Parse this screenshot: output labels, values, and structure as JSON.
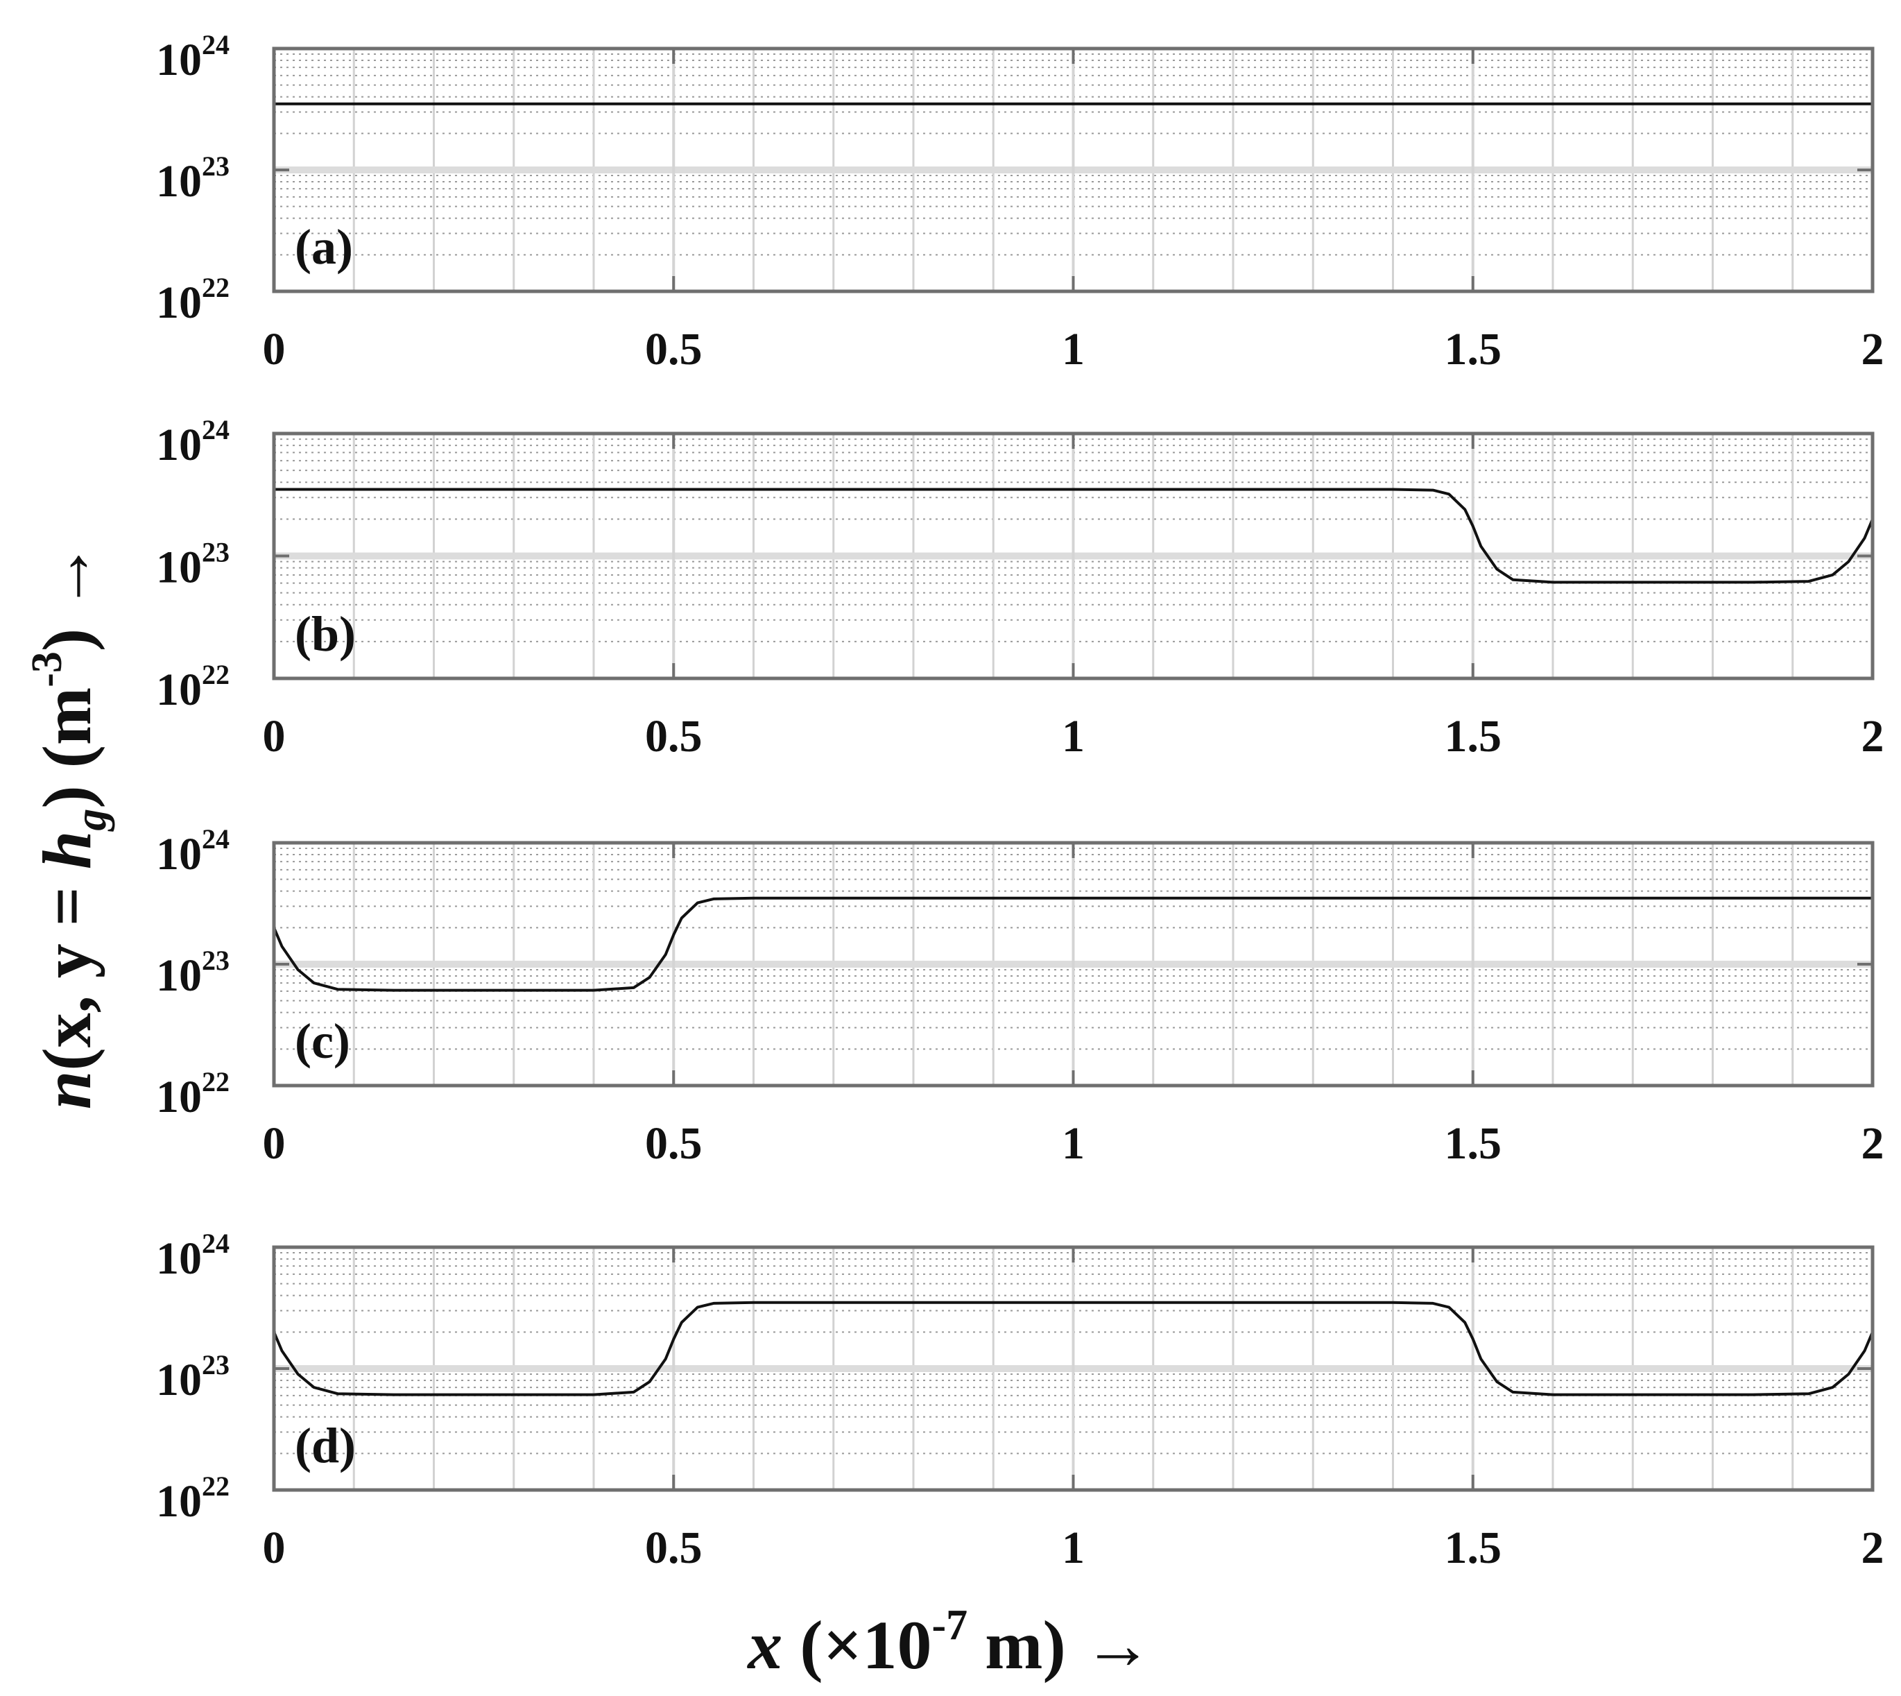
{
  "figure": {
    "xlabel": "x (×10",
    "xlabel_exp": "-7",
    "xlabel_tail": " m) →",
    "ylabel_n": "n",
    "ylabel_mid": "(x, y = ",
    "ylabel_h": "h",
    "ylabel_sub": "g",
    "ylabel_tail": ") (m",
    "ylabel_exp": "-3",
    "ylabel_end": ") →"
  },
  "chart_data": [
    {
      "type": "line",
      "panel_label": "(a)",
      "x_ticks": [
        "0",
        "0.5",
        "1",
        "1.5",
        "2"
      ],
      "y_ticks": [
        {
          "base": "10",
          "exp": "22"
        },
        {
          "base": "10",
          "exp": "23"
        },
        {
          "base": "10",
          "exp": "24"
        }
      ],
      "xlim": [
        0,
        2
      ],
      "ylim": [
        1e+22,
        1e+24
      ],
      "yscale": "log",
      "grid": true,
      "minor_grid": true,
      "x_unit": "×10^-7 m",
      "x": [
        0,
        2
      ],
      "series": [
        {
          "values": [
            3.5e+23,
            3.5e+23
          ]
        }
      ]
    },
    {
      "type": "line",
      "panel_label": "(b)",
      "x_ticks": [
        "0",
        "0.5",
        "1",
        "1.5",
        "2"
      ],
      "y_ticks": [
        {
          "base": "10",
          "exp": "22"
        },
        {
          "base": "10",
          "exp": "23"
        },
        {
          "base": "10",
          "exp": "24"
        }
      ],
      "xlim": [
        0,
        2
      ],
      "ylim": [
        1e+22,
        1e+24
      ],
      "yscale": "log",
      "grid": true,
      "minor_grid": true,
      "x": [
        0,
        1.4,
        1.45,
        1.47,
        1.49,
        1.5,
        1.51,
        1.53,
        1.55,
        1.6,
        1.85,
        1.92,
        1.95,
        1.97,
        1.99,
        2.0
      ],
      "series": [
        {
          "values": [
            3.5e+23,
            3.5e+23,
            3.45e+23,
            3.2e+23,
            2.4e+23,
            1.75e+23,
            1.2e+23,
            7.8e+22,
            6.4e+22,
            6.1e+22,
            6.1e+22,
            6.2e+22,
            7e+22,
            9e+22,
            1.4e+23,
            2e+23
          ]
        }
      ]
    },
    {
      "type": "line",
      "panel_label": "(c)",
      "x_ticks": [
        "0",
        "0.5",
        "1",
        "1.5",
        "2"
      ],
      "y_ticks": [
        {
          "base": "10",
          "exp": "22"
        },
        {
          "base": "10",
          "exp": "23"
        },
        {
          "base": "10",
          "exp": "24"
        }
      ],
      "xlim": [
        0,
        2
      ],
      "ylim": [
        1e+22,
        1e+24
      ],
      "yscale": "log",
      "grid": true,
      "minor_grid": true,
      "x": [
        0.0,
        0.01,
        0.03,
        0.05,
        0.08,
        0.15,
        0.4,
        0.45,
        0.47,
        0.49,
        0.5,
        0.51,
        0.53,
        0.55,
        0.6,
        2.0
      ],
      "series": [
        {
          "values": [
            2e+23,
            1.4e+23,
            9e+22,
            7e+22,
            6.2e+22,
            6.1e+22,
            6.1e+22,
            6.4e+22,
            7.8e+22,
            1.2e+23,
            1.75e+23,
            2.4e+23,
            3.2e+23,
            3.45e+23,
            3.5e+23,
            3.5e+23
          ]
        }
      ]
    },
    {
      "type": "line",
      "panel_label": "(d)",
      "x_ticks": [
        "0",
        "0.5",
        "1",
        "1.5",
        "2"
      ],
      "y_ticks": [
        {
          "base": "10",
          "exp": "22"
        },
        {
          "base": "10",
          "exp": "23"
        },
        {
          "base": "10",
          "exp": "24"
        }
      ],
      "xlim": [
        0,
        2
      ],
      "ylim": [
        1e+22,
        1e+24
      ],
      "yscale": "log",
      "grid": true,
      "minor_grid": true,
      "x": [
        0.0,
        0.01,
        0.03,
        0.05,
        0.08,
        0.15,
        0.4,
        0.45,
        0.47,
        0.49,
        0.5,
        0.51,
        0.53,
        0.55,
        0.6,
        1.4,
        1.45,
        1.47,
        1.49,
        1.5,
        1.51,
        1.53,
        1.55,
        1.6,
        1.85,
        1.92,
        1.95,
        1.97,
        1.99,
        2.0
      ],
      "series": [
        {
          "values": [
            2e+23,
            1.4e+23,
            9e+22,
            7e+22,
            6.2e+22,
            6.1e+22,
            6.1e+22,
            6.4e+22,
            7.8e+22,
            1.2e+23,
            1.75e+23,
            2.4e+23,
            3.2e+23,
            3.45e+23,
            3.5e+23,
            3.5e+23,
            3.45e+23,
            3.2e+23,
            2.4e+23,
            1.75e+23,
            1.2e+23,
            7.8e+22,
            6.4e+22,
            6.1e+22,
            6.1e+22,
            6.2e+22,
            7e+22,
            9e+22,
            1.4e+23,
            2e+23
          ]
        }
      ]
    }
  ]
}
